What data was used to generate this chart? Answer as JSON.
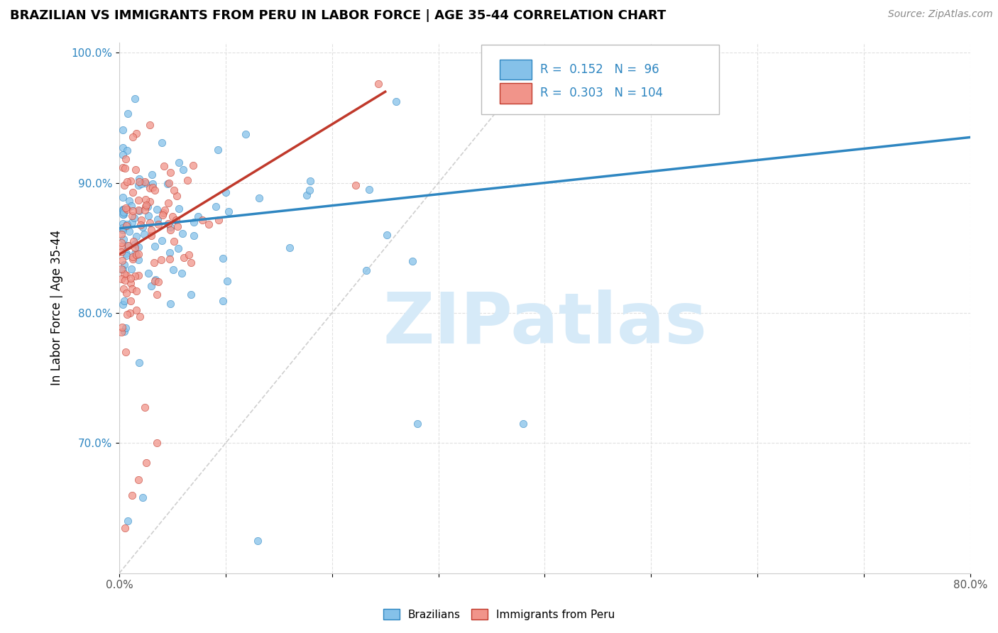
{
  "title": "BRAZILIAN VS IMMIGRANTS FROM PERU IN LABOR FORCE | AGE 35-44 CORRELATION CHART",
  "source": "Source: ZipAtlas.com",
  "ylabel": "In Labor Force | Age 35-44",
  "x_min": 0.0,
  "x_max": 0.8,
  "y_min": 0.6,
  "y_max": 1.008,
  "x_ticks": [
    0.0,
    0.1,
    0.2,
    0.3,
    0.4,
    0.5,
    0.6,
    0.7,
    0.8
  ],
  "y_ticks": [
    0.7,
    0.8,
    0.9,
    1.0
  ],
  "x_tick_labels": [
    "0.0%",
    "",
    "",
    "",
    "",
    "",
    "",
    "",
    "80.0%"
  ],
  "y_tick_labels": [
    "70.0%",
    "80.0%",
    "90.0%",
    "100.0%"
  ],
  "blue_color": "#85C1E9",
  "pink_color": "#F1948A",
  "trend_blue": "#2E86C1",
  "trend_pink": "#C0392B",
  "watermark": "ZIPatlas",
  "watermark_color": "#D6EAF8",
  "background_color": "#FFFFFF",
  "grid_color": "#DDDDDD",
  "label_color_blue": "#2E86C1",
  "blue_trend_x0": 0.0,
  "blue_trend_y0": 0.865,
  "blue_trend_x1": 0.8,
  "blue_trend_y1": 0.935,
  "pink_trend_x0": 0.0,
  "pink_trend_y0": 0.845,
  "pink_trend_x1": 0.25,
  "pink_trend_y1": 0.97,
  "ref_line_x0": 0.0,
  "ref_line_y0": 0.6,
  "ref_line_x1": 0.4,
  "ref_line_y1": 1.0
}
